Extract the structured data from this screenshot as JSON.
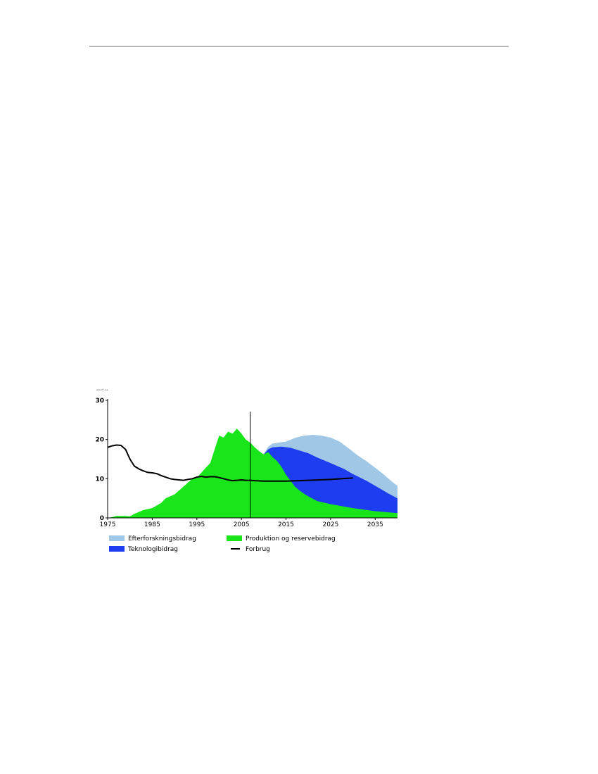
{
  "chart_data": {
    "type": "area",
    "x_ticks": [
      1975,
      1985,
      1995,
      2005,
      2015,
      2025,
      2035
    ],
    "y_ticks": [
      0,
      10,
      20,
      30
    ],
    "xlim": [
      1975,
      2040
    ],
    "ylim": [
      0,
      30
    ],
    "y_unit_label": "mio m³ o.e.",
    "vline_year": 2007,
    "legend_position": "bottom",
    "colors": {
      "efterforskning": "#a0c8e6",
      "teknologi": "#1e3cf0",
      "produktion": "#18e61a",
      "forbrug": "#000000"
    },
    "series": [
      {
        "key": "produktion",
        "name": "Produktion og reservebidrag",
        "kind": "area",
        "points": [
          [
            1975,
            0
          ],
          [
            1976,
            0.2
          ],
          [
            1977,
            0.5
          ],
          [
            1979,
            0.5
          ],
          [
            1980,
            0.4
          ],
          [
            1981,
            1
          ],
          [
            1983,
            2
          ],
          [
            1985,
            2.5
          ],
          [
            1987,
            3.8
          ],
          [
            1988,
            5
          ],
          [
            1990,
            6
          ],
          [
            1992,
            8
          ],
          [
            1994,
            10
          ],
          [
            1995,
            10.3
          ],
          [
            1996,
            11.5
          ],
          [
            1997,
            12.8
          ],
          [
            1998,
            14
          ],
          [
            1999,
            17.5
          ],
          [
            2000,
            21
          ],
          [
            2001,
            20.5
          ],
          [
            2002,
            22
          ],
          [
            2003,
            21.5
          ],
          [
            2004,
            22.8
          ],
          [
            2005,
            21.5
          ],
          [
            2006,
            20
          ],
          [
            2007,
            19.2
          ],
          [
            2008,
            18
          ],
          [
            2009,
            17
          ],
          [
            2010,
            16.2
          ],
          [
            2011,
            16.8
          ],
          [
            2012,
            15.5
          ],
          [
            2013,
            14.5
          ],
          [
            2014,
            13
          ],
          [
            2015,
            11
          ],
          [
            2016,
            9.5
          ],
          [
            2017,
            8
          ],
          [
            2018,
            7
          ],
          [
            2019,
            6.2
          ],
          [
            2020,
            5.5
          ],
          [
            2022,
            4.3
          ],
          [
            2025,
            3.5
          ],
          [
            2030,
            2.5
          ],
          [
            2035,
            1.7
          ],
          [
            2040,
            1.2
          ]
        ]
      },
      {
        "key": "teknologi",
        "name": "Teknologibidrag",
        "kind": "area",
        "points": [
          [
            2010,
            16.2
          ],
          [
            2011,
            17.5
          ],
          [
            2012,
            18
          ],
          [
            2014,
            18.2
          ],
          [
            2016,
            17.9
          ],
          [
            2018,
            17.2
          ],
          [
            2020,
            16.5
          ],
          [
            2022,
            15.4
          ],
          [
            2025,
            14
          ],
          [
            2028,
            12.5
          ],
          [
            2030,
            11.2
          ],
          [
            2033,
            9.5
          ],
          [
            2035,
            8.2
          ],
          [
            2038,
            6.2
          ],
          [
            2040,
            5
          ]
        ]
      },
      {
        "key": "efterforskning",
        "name": "Efterforskningsbidrag",
        "kind": "area",
        "points": [
          [
            2010,
            16.2
          ],
          [
            2011,
            18.2
          ],
          [
            2012,
            19
          ],
          [
            2015,
            19.5
          ],
          [
            2017,
            20.4
          ],
          [
            2019,
            21
          ],
          [
            2021,
            21.2
          ],
          [
            2023,
            21
          ],
          [
            2025,
            20.5
          ],
          [
            2027,
            19.5
          ],
          [
            2029,
            17.8
          ],
          [
            2031,
            16
          ],
          [
            2033,
            14.5
          ],
          [
            2035,
            12.8
          ],
          [
            2037,
            11
          ],
          [
            2039,
            9
          ],
          [
            2040,
            8.2
          ]
        ]
      },
      {
        "key": "forbrug",
        "name": "Forbrug",
        "kind": "line",
        "points": [
          [
            1975,
            18
          ],
          [
            1976,
            18.4
          ],
          [
            1977,
            18.6
          ],
          [
            1978,
            18.5
          ],
          [
            1979,
            17.5
          ],
          [
            1980,
            15
          ],
          [
            1981,
            13.2
          ],
          [
            1982,
            12.5
          ],
          [
            1983,
            12
          ],
          [
            1984,
            11.6
          ],
          [
            1985,
            11.5
          ],
          [
            1986,
            11.3
          ],
          [
            1987,
            10.8
          ],
          [
            1988,
            10.4
          ],
          [
            1989,
            10
          ],
          [
            1990,
            9.8
          ],
          [
            1991,
            9.7
          ],
          [
            1992,
            9.6
          ],
          [
            1993,
            9.8
          ],
          [
            1994,
            10
          ],
          [
            1995,
            10.4
          ],
          [
            1996,
            10.6
          ],
          [
            1997,
            10.4
          ],
          [
            1998,
            10.5
          ],
          [
            1999,
            10.5
          ],
          [
            2000,
            10.3
          ],
          [
            2001,
            10
          ],
          [
            2002,
            9.7
          ],
          [
            2003,
            9.5
          ],
          [
            2004,
            9.6
          ],
          [
            2005,
            9.7
          ],
          [
            2006,
            9.6
          ],
          [
            2007,
            9.6
          ],
          [
            2008,
            9.5
          ],
          [
            2010,
            9.4
          ],
          [
            2015,
            9.4
          ],
          [
            2020,
            9.6
          ],
          [
            2025,
            9.8
          ],
          [
            2030,
            10.2
          ]
        ]
      }
    ],
    "legend": [
      {
        "key": "efterforskning",
        "label": "Efterforskningsbidrag",
        "swatch": "box"
      },
      {
        "key": "produktion",
        "label": "Produktion og reservebidrag",
        "swatch": "box"
      },
      {
        "key": "teknologi",
        "label": "Teknologibidrag",
        "swatch": "box"
      },
      {
        "key": "forbrug",
        "label": "Forbrug",
        "swatch": "line"
      }
    ]
  }
}
